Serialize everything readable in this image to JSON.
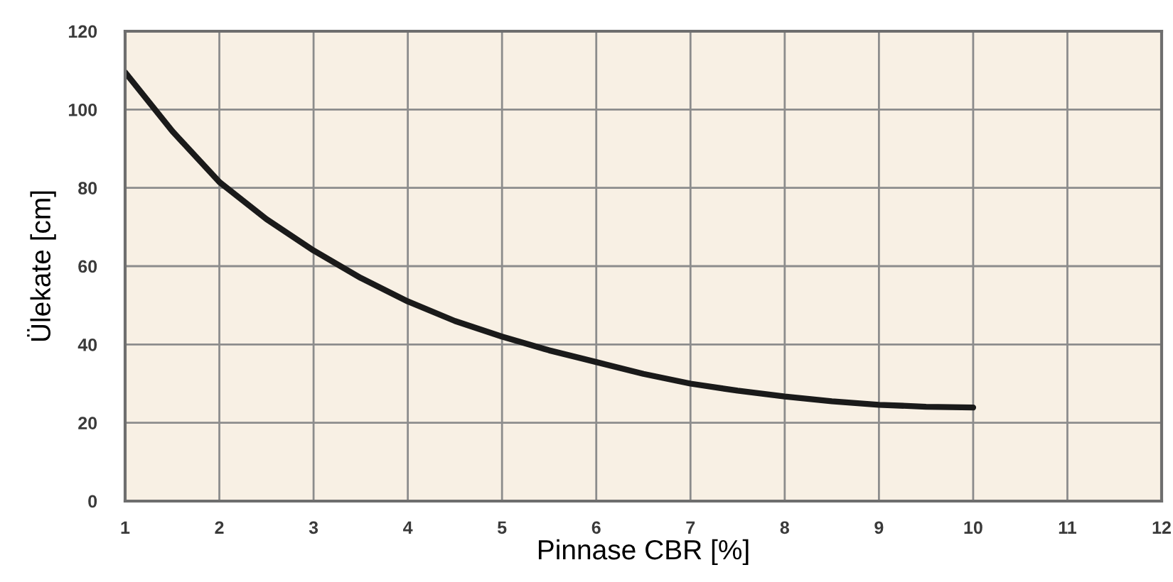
{
  "chart_data": {
    "type": "line",
    "xlabel": "Pinnase CBR [%]",
    "ylabel": "Ülekate [cm]",
    "x": [
      1,
      1.5,
      2,
      2.5,
      3,
      3.5,
      4,
      4.5,
      5,
      5.5,
      6,
      6.5,
      7,
      7.5,
      8,
      8.5,
      9,
      9.5,
      10
    ],
    "series": [
      {
        "color": "#1a1a1a",
        "values": [
          109.5,
          94.5,
          81.5,
          72,
          64,
          57,
          51,
          46,
          42,
          38.5,
          35.5,
          32.5,
          30,
          28.2,
          26.7,
          25.5,
          24.6,
          24.1,
          23.9
        ]
      }
    ],
    "xlim": [
      1,
      12
    ],
    "ylim": [
      0,
      120
    ],
    "xticks": [
      1,
      2,
      3,
      4,
      5,
      6,
      7,
      8,
      9,
      10,
      11,
      12
    ],
    "yticks": [
      0,
      20,
      40,
      60,
      80,
      100,
      120
    ],
    "grid": true,
    "line_style": "solid"
  }
}
